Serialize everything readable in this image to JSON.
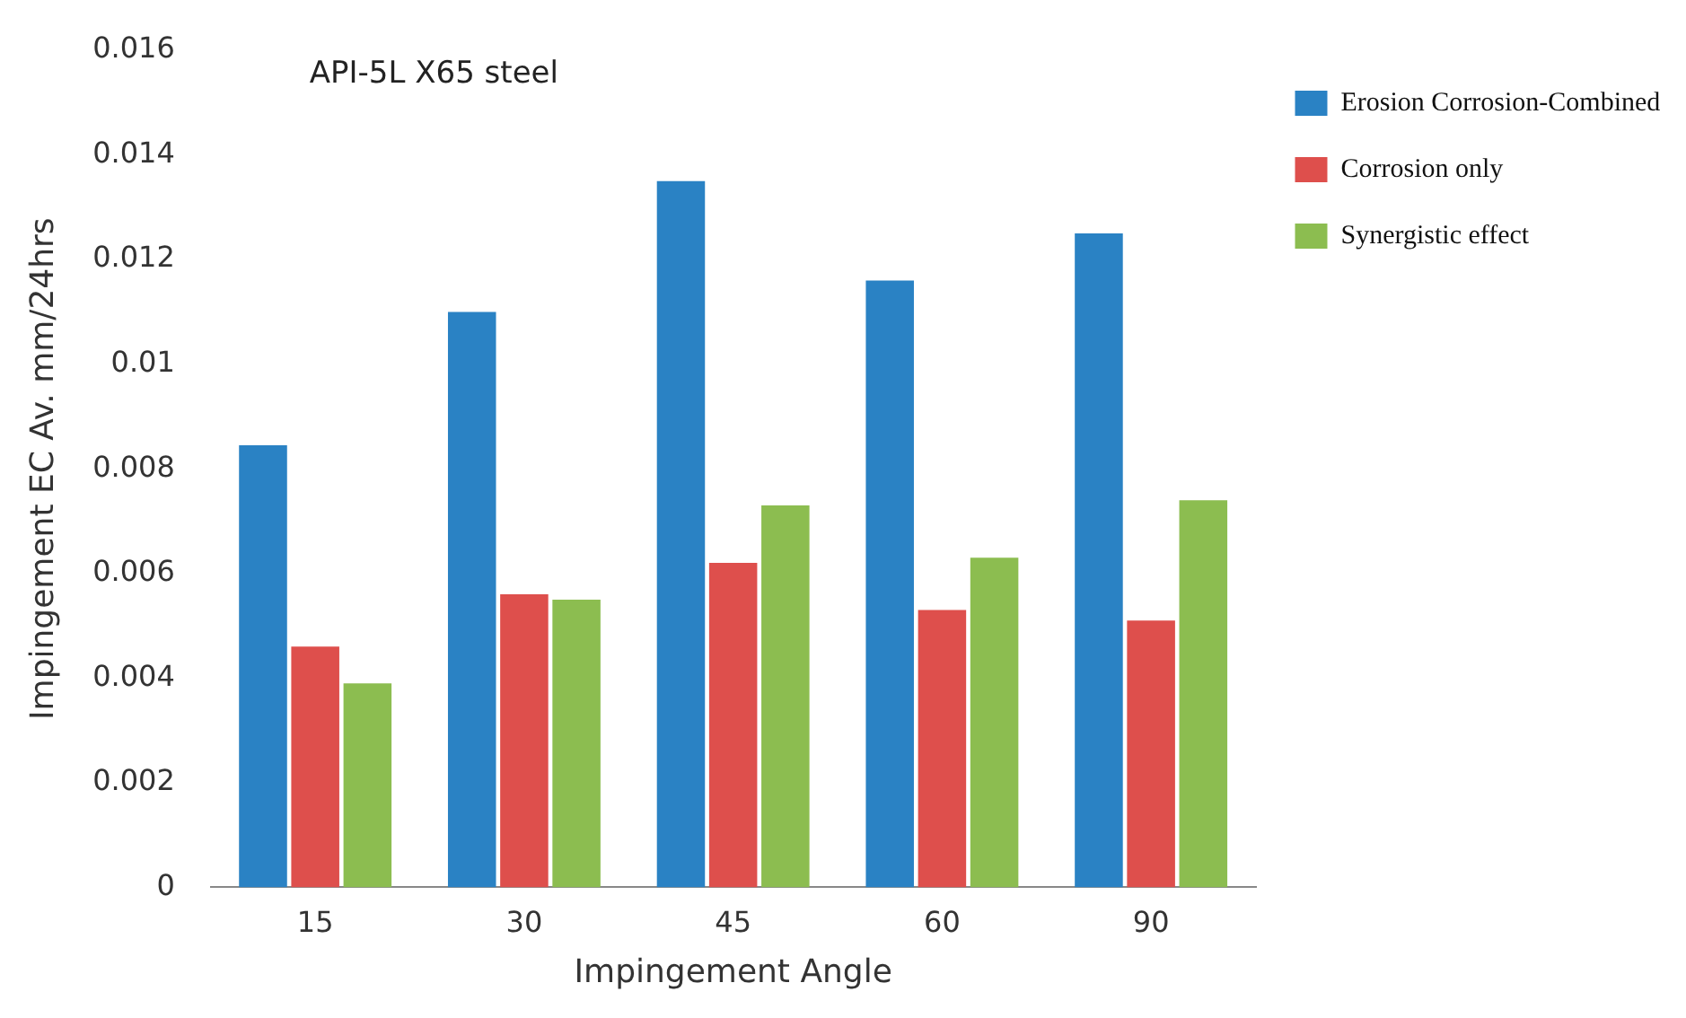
{
  "chart_data": {
    "type": "bar",
    "xlabel": "Impingement Angle",
    "ylabel": "Impingement EC Av. mm/24hrs",
    "annotations": [
      "API-5L X65 steel"
    ],
    "categories": [
      "15",
      "30",
      "45",
      "60",
      "90"
    ],
    "series": [
      {
        "name": "Erosion Corrosion-Combined",
        "color": "#2a82c4",
        "values": [
          0.00845,
          0.011,
          0.0135,
          0.0116,
          0.0125
        ]
      },
      {
        "name": "Corrosion only",
        "color": "#de4f4c",
        "values": [
          0.0046,
          0.0056,
          0.0062,
          0.0053,
          0.0051
        ]
      },
      {
        "name": "Synergistic effect",
        "color": "#8cbd50",
        "values": [
          0.0039,
          0.0055,
          0.0073,
          0.0063,
          0.0074
        ]
      }
    ],
    "ylim": [
      0,
      0.016
    ],
    "yticks": [
      0,
      0.002,
      0.004,
      0.006,
      0.008,
      {
        "value": 0.01,
        "label": "0.01"
      },
      0.012,
      0.014,
      0.016
    ],
    "grid": false,
    "legend": "top right"
  }
}
